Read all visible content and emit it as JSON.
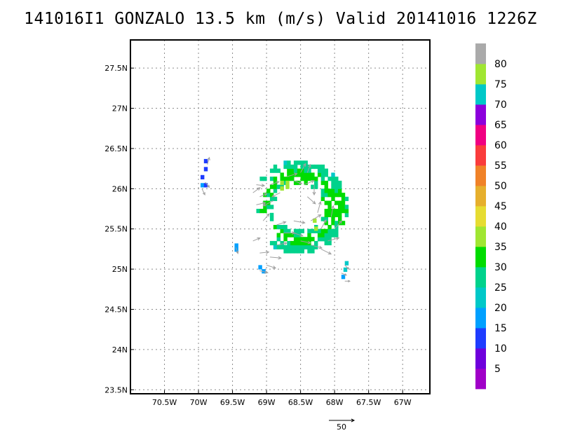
{
  "title": "141016I1 GONZALO 13.5 km (m/s) Valid 20141016 1226Z",
  "chart_data": {
    "type": "heatmap",
    "title": "141016I1 GONZALO 13.5 km (m/s) Valid 20141016 1226Z",
    "xlabel": "",
    "ylabel": "",
    "xlim": [
      -71.0,
      -66.6
    ],
    "ylim": [
      23.45,
      27.85
    ],
    "x_ticks": [
      {
        "value": -70.5,
        "label": "70.5W"
      },
      {
        "value": -70.0,
        "label": "70W"
      },
      {
        "value": -69.5,
        "label": "69.5W"
      },
      {
        "value": -69.0,
        "label": "69W"
      },
      {
        "value": -68.5,
        "label": "68.5W"
      },
      {
        "value": -68.0,
        "label": "68W"
      },
      {
        "value": -67.5,
        "label": "67.5W"
      },
      {
        "value": -67.0,
        "label": "67W"
      }
    ],
    "y_ticks": [
      {
        "value": 23.5,
        "label": "23.5N"
      },
      {
        "value": 24.0,
        "label": "24N"
      },
      {
        "value": 24.5,
        "label": "24.5N"
      },
      {
        "value": 25.0,
        "label": "25N"
      },
      {
        "value": 25.5,
        "label": "25.5N"
      },
      {
        "value": 26.0,
        "label": "26N"
      },
      {
        "value": 26.5,
        "label": "26.5N"
      },
      {
        "value": 27.0,
        "label": "27N"
      },
      {
        "value": 27.5,
        "label": "27.5N"
      }
    ],
    "grid": true,
    "colorbar": {
      "levels": [
        0,
        5,
        10,
        15,
        20,
        25,
        30,
        35,
        40,
        45,
        50,
        55,
        60,
        65,
        70,
        75,
        80,
        85
      ],
      "labels": [
        "5",
        "10",
        "15",
        "20",
        "25",
        "30",
        "35",
        "40",
        "45",
        "50",
        "55",
        "60",
        "65",
        "70",
        "75",
        "80"
      ],
      "colors": [
        "#a000c8",
        "#6e00dc",
        "#1e3cff",
        "#00a0ff",
        "#00c8c8",
        "#00d28c",
        "#00dc00",
        "#a0e632",
        "#e6dc32",
        "#e6af2d",
        "#f08228",
        "#fa3c3c",
        "#f00082",
        "#8c00dc",
        "#00c8c8",
        "#a0e632",
        "#aaaaaa"
      ]
    },
    "cells": [
      {
        "lon": -69.92,
        "lat": 26.32,
        "value": 12
      },
      {
        "lon": -69.92,
        "lat": 26.22,
        "value": 12
      },
      {
        "lon": -69.97,
        "lat": 26.12,
        "value": 12
      },
      {
        "lon": -69.97,
        "lat": 26.02,
        "value": 17
      },
      {
        "lon": -69.92,
        "lat": 26.02,
        "value": 12
      },
      {
        "lon": -69.47,
        "lat": 25.27,
        "value": 17
      },
      {
        "lon": -69.47,
        "lat": 25.22,
        "value": 17
      },
      {
        "lon": -69.12,
        "lat": 25.0,
        "value": 17
      },
      {
        "lon": -69.07,
        "lat": 24.95,
        "value": 17
      },
      {
        "lon": -67.9,
        "lat": 24.88,
        "value": 17
      },
      {
        "lon": -67.87,
        "lat": 24.97,
        "value": 22
      },
      {
        "lon": -67.85,
        "lat": 25.05,
        "value": 22
      },
      {
        "lon": -68.8,
        "lat": 25.98,
        "value": 35
      },
      {
        "lon": -68.72,
        "lat": 26.0,
        "value": 35
      },
      {
        "lon": -68.8,
        "lat": 26.05,
        "value": 35
      },
      {
        "lon": -68.72,
        "lat": 26.05,
        "value": 35
      },
      {
        "lon": -68.32,
        "lat": 25.58,
        "value": 35
      },
      {
        "lon": -68.3,
        "lat": 25.48,
        "value": 35
      }
    ],
    "vectors": [
      {
        "lon": -69.87,
        "lat": 26.3,
        "u": 4,
        "v": 14
      },
      {
        "lon": -69.9,
        "lat": 26.08,
        "u": 8,
        "v": -10
      },
      {
        "lon": -69.95,
        "lat": 26.0,
        "u": 6,
        "v": -12
      },
      {
        "lon": -69.45,
        "lat": 25.27,
        "u": 4,
        "v": -12
      },
      {
        "lon": -69.1,
        "lat": 24.98,
        "u": 16,
        "v": -4
      },
      {
        "lon": -69.0,
        "lat": 25.05,
        "u": 18,
        "v": -6
      },
      {
        "lon": -69.2,
        "lat": 25.35,
        "u": 14,
        "v": 6
      },
      {
        "lon": -69.1,
        "lat": 25.2,
        "u": 18,
        "v": 2
      },
      {
        "lon": -68.95,
        "lat": 25.15,
        "u": 22,
        "v": -2
      },
      {
        "lon": -68.85,
        "lat": 25.3,
        "u": 20,
        "v": 4
      },
      {
        "lon": -68.75,
        "lat": 25.45,
        "u": 22,
        "v": 0
      },
      {
        "lon": -68.6,
        "lat": 25.45,
        "u": 18,
        "v": -6
      },
      {
        "lon": -68.5,
        "lat": 25.35,
        "u": 20,
        "v": -4
      },
      {
        "lon": -68.35,
        "lat": 25.3,
        "u": 22,
        "v": -6
      },
      {
        "lon": -68.2,
        "lat": 25.25,
        "u": 20,
        "v": -10
      },
      {
        "lon": -68.1,
        "lat": 25.35,
        "u": 22,
        "v": 6
      },
      {
        "lon": -68.0,
        "lat": 25.5,
        "u": 14,
        "v": 16
      },
      {
        "lon": -68.05,
        "lat": 25.65,
        "u": 4,
        "v": 22
      },
      {
        "lon": -68.25,
        "lat": 25.7,
        "u": 6,
        "v": 22
      },
      {
        "lon": -68.2,
        "lat": 25.5,
        "u": 10,
        "v": 18
      },
      {
        "lon": -67.9,
        "lat": 24.95,
        "u": 10,
        "v": -4
      },
      {
        "lon": -67.85,
        "lat": 25.05,
        "u": 8,
        "v": -8
      },
      {
        "lon": -67.85,
        "lat": 24.85,
        "u": 10,
        "v": 0
      },
      {
        "lon": -69.15,
        "lat": 26.05,
        "u": 16,
        "v": -2
      },
      {
        "lon": -69.1,
        "lat": 25.9,
        "u": 14,
        "v": 6
      },
      {
        "lon": -69.15,
        "lat": 25.8,
        "u": 18,
        "v": 4
      },
      {
        "lon": -69.2,
        "lat": 25.95,
        "u": 14,
        "v": 10
      },
      {
        "lon": -68.95,
        "lat": 26.05,
        "u": 18,
        "v": 6
      },
      {
        "lon": -68.7,
        "lat": 26.15,
        "u": 20,
        "v": 6
      },
      {
        "lon": -68.6,
        "lat": 26.1,
        "u": 16,
        "v": -6
      },
      {
        "lon": -68.45,
        "lat": 26.05,
        "u": 20,
        "v": 8
      },
      {
        "lon": -68.4,
        "lat": 25.9,
        "u": 16,
        "v": -14
      },
      {
        "lon": -68.3,
        "lat": 26.05,
        "u": 0,
        "v": -20
      },
      {
        "lon": -68.4,
        "lat": 26.2,
        "u": 6,
        "v": 16
      },
      {
        "lon": -68.5,
        "lat": 26.2,
        "u": 10,
        "v": 18
      },
      {
        "lon": -68.8,
        "lat": 25.95,
        "u": -16,
        "v": -8
      },
      {
        "lon": -68.9,
        "lat": 25.85,
        "u": -20,
        "v": -10
      },
      {
        "lon": -69.05,
        "lat": 25.6,
        "u": 12,
        "v": 14
      },
      {
        "lon": -68.85,
        "lat": 25.55,
        "u": 18,
        "v": 6
      },
      {
        "lon": -68.6,
        "lat": 25.6,
        "u": 22,
        "v": -4
      },
      {
        "lon": -68.35,
        "lat": 25.6,
        "u": 20,
        "v": 12
      }
    ],
    "reference_vector": {
      "u": 50,
      "v": 0,
      "label": "50"
    }
  }
}
